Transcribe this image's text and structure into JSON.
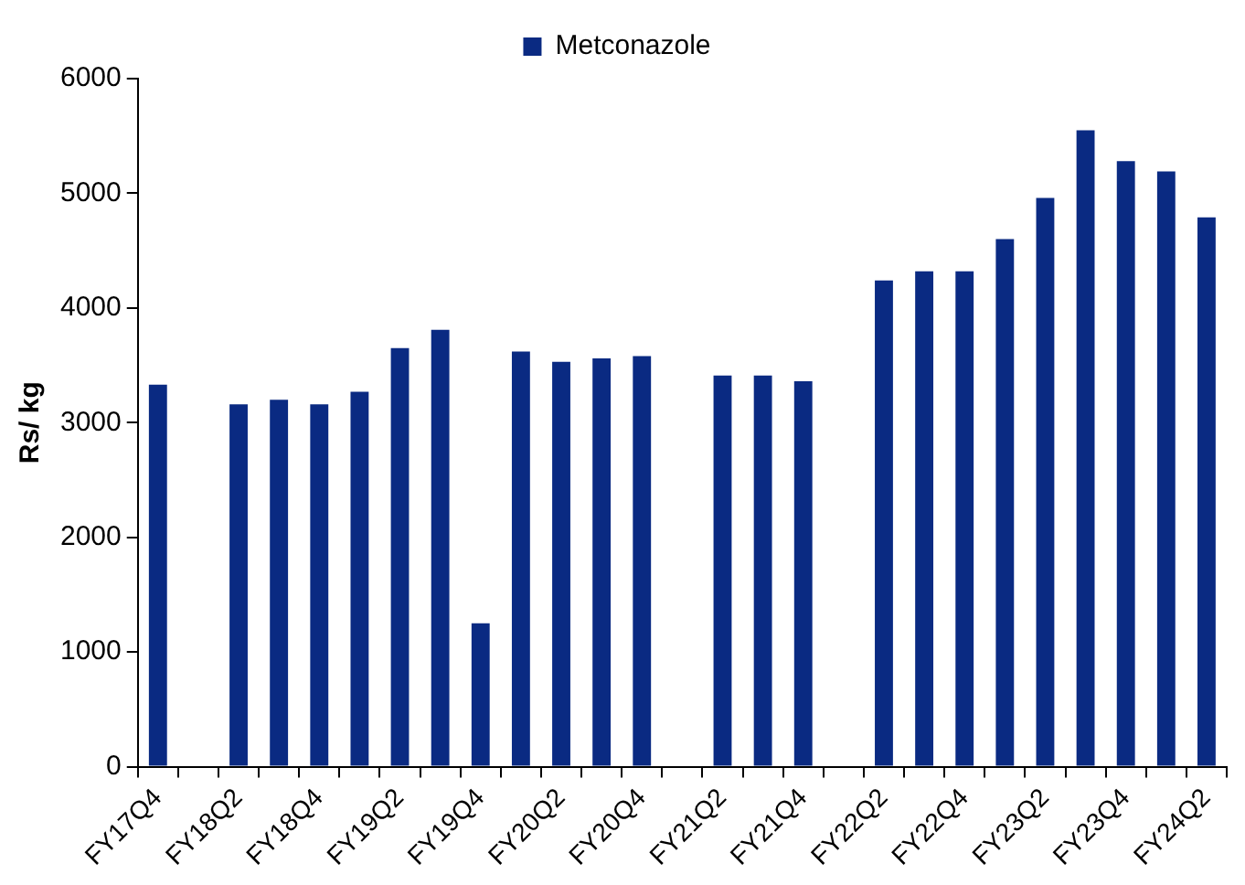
{
  "chart_data": {
    "type": "bar",
    "ylabel": "Rs/ kg",
    "categories": [
      "FY17Q4",
      null,
      "FY18Q2",
      null,
      "FY18Q4",
      null,
      "FY19Q2",
      null,
      "FY19Q4",
      null,
      "FY20Q2",
      null,
      "FY20Q4",
      null,
      "FY21Q2",
      null,
      "FY21Q4",
      null,
      "FY22Q2",
      null,
      "FY22Q4",
      null,
      "FY23Q2",
      null,
      "FY23Q4",
      null,
      "FY24Q2"
    ],
    "series": [
      {
        "name": "Metconazole",
        "color": "#0a2a82",
        "values": [
          3330,
          null,
          3160,
          3200,
          3160,
          3270,
          3650,
          3810,
          1250,
          3620,
          3530,
          3560,
          3580,
          null,
          3410,
          3410,
          3360,
          null,
          4240,
          4320,
          4320,
          4600,
          4960,
          5550,
          5280,
          5190,
          4790
        ]
      }
    ],
    "ylim": [
      0,
      6000
    ],
    "yticks": [
      0,
      1000,
      2000,
      3000,
      4000,
      5000,
      6000
    ],
    "grid": false,
    "legend": "top"
  }
}
